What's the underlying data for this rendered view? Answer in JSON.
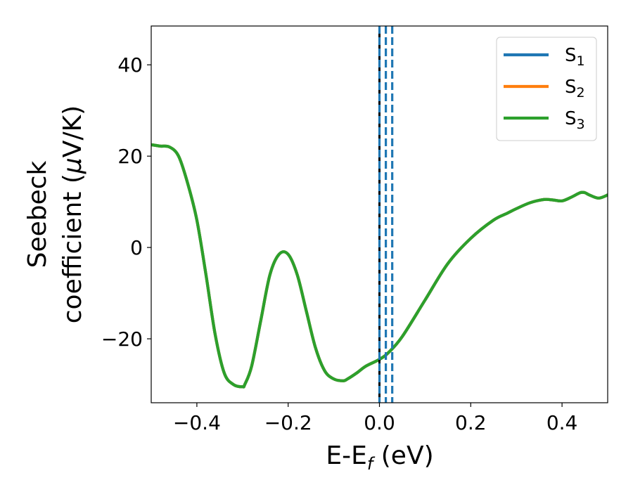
{
  "chart_data": {
    "type": "line",
    "xlabel": {
      "main": "E-E",
      "sub": "f",
      "unit": " (eV)"
    },
    "ylabel": {
      "line1": "Seebeck",
      "line2_prefix": "coefficient  (",
      "line2_mu": "μ",
      "line2_suffix": "V/K)"
    },
    "xlim": [
      -0.5,
      0.5
    ],
    "ylim": [
      -34,
      48.5
    ],
    "x_ticks": [
      -0.4,
      -0.2,
      0.0,
      0.2,
      0.4
    ],
    "x_tick_labels": [
      "−0.4",
      "−0.2",
      "0.0",
      "0.2",
      "0.4"
    ],
    "y_ticks": [
      -20,
      0,
      20,
      40
    ],
    "y_tick_labels": [
      "−20",
      "0",
      "20",
      "40"
    ],
    "grid": false,
    "legend_position": "top-right",
    "series": [
      {
        "name": "S",
        "subscript": "1",
        "color": "#1f77b4"
      },
      {
        "name": "S",
        "subscript": "2",
        "color": "#ff7f0e"
      },
      {
        "name": "S",
        "subscript": "3",
        "color": "#2ca02c"
      }
    ],
    "curve": {
      "x": [
        -0.5,
        -0.48,
        -0.46,
        -0.44,
        -0.42,
        -0.4,
        -0.38,
        -0.36,
        -0.34,
        -0.32,
        -0.3,
        -0.295,
        -0.28,
        -0.26,
        -0.24,
        -0.22,
        -0.2,
        -0.18,
        -0.16,
        -0.14,
        -0.12,
        -0.1,
        -0.08,
        -0.07,
        -0.05,
        -0.03,
        0.0,
        0.02,
        0.05,
        0.1,
        0.15,
        0.2,
        0.25,
        0.28,
        0.3,
        0.33,
        0.36,
        0.38,
        0.4,
        0.42,
        0.44,
        0.45,
        0.46,
        0.48,
        0.5
      ],
      "y": [
        22.5,
        22.2,
        22.0,
        20.0,
        14.0,
        6.0,
        -6.0,
        -19.0,
        -27.5,
        -30.0,
        -30.5,
        -30.0,
        -26.0,
        -16.0,
        -6.0,
        -1.5,
        -1.5,
        -6.0,
        -14.0,
        -22.0,
        -27.0,
        -28.8,
        -29.2,
        -28.8,
        -27.5,
        -26.0,
        -24.5,
        -23.0,
        -19.5,
        -11.5,
        -3.5,
        2.0,
        6.0,
        7.5,
        8.5,
        9.8,
        10.5,
        10.4,
        10.2,
        11.0,
        12.0,
        12.0,
        11.5,
        10.8,
        11.5
      ]
    },
    "vertical_lines": [
      {
        "x": 0.0,
        "color": "#000000",
        "style": "solid"
      },
      {
        "x": 0.0,
        "color": "#1f77b4",
        "style": "dashed"
      },
      {
        "x": 0.014,
        "color": "#1f77b4",
        "style": "dashed"
      },
      {
        "x": 0.028,
        "color": "#1f77b4",
        "style": "dashed"
      }
    ]
  }
}
